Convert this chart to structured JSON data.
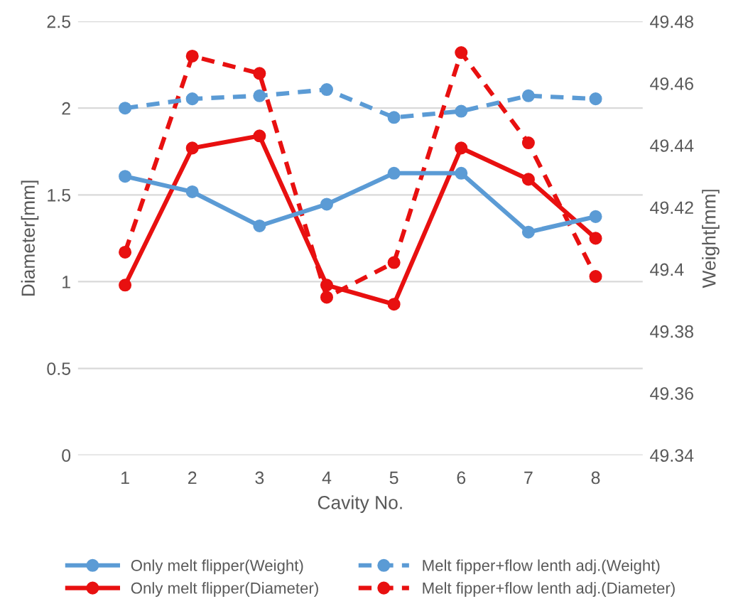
{
  "chart_data": {
    "type": "line",
    "xlabel": "Cavity No.",
    "ylabel": "Diameter[mm]",
    "y2label": "Weight[mm]",
    "categories": [
      "1",
      "2",
      "3",
      "4",
      "5",
      "6",
      "7",
      "8"
    ],
    "series": [
      {
        "name": "Only melt flipper(Weight)",
        "color": "#5b9bd5",
        "axis": "y2",
        "line_style": "solid",
        "values": [
          49.43,
          49.425,
          49.414,
          49.421,
          49.431,
          49.431,
          49.412,
          49.417
        ]
      },
      {
        "name": "Melt fipper+flow lenth adj.(Weight)",
        "color": "#5b9bd5",
        "axis": "y2",
        "line_style": "dashed",
        "values": [
          49.452,
          49.455,
          49.456,
          49.458,
          49.449,
          49.451,
          49.456,
          49.455
        ]
      },
      {
        "name": "Only melt flipper(Diameter)",
        "color": "#e81010",
        "axis": "y",
        "line_style": "solid",
        "values": [
          0.98,
          1.77,
          1.84,
          0.98,
          0.87,
          1.77,
          1.59,
          1.25
        ]
      },
      {
        "name": "Melt fipper+flow lenth adj.(Diameter)",
        "color": "#e81010",
        "axis": "y",
        "line_style": "dashed",
        "values": [
          1.17,
          2.3,
          2.2,
          0.91,
          1.11,
          2.32,
          1.8,
          1.03
        ]
      }
    ],
    "ylim": [
      0,
      2.5
    ],
    "yticks": [
      0,
      0.5,
      1,
      1.5,
      2,
      2.5
    ],
    "y2lim": [
      49.34,
      49.48
    ],
    "y2ticks": [
      {
        "value": 49.34,
        "label": "49.34"
      },
      {
        "value": 49.36,
        "label": "49.36"
      },
      {
        "value": 49.38,
        "label": "49.38"
      },
      {
        "value": 49.4,
        "label": "49.4"
      },
      {
        "value": 49.42,
        "label": "49.42"
      },
      {
        "value": 49.44,
        "label": "49.44"
      },
      {
        "value": 49.46,
        "label": "49.46"
      },
      {
        "value": 49.48,
        "label": "49.48"
      }
    ],
    "grid": "y",
    "legend": "bottom",
    "marker": "circle"
  }
}
